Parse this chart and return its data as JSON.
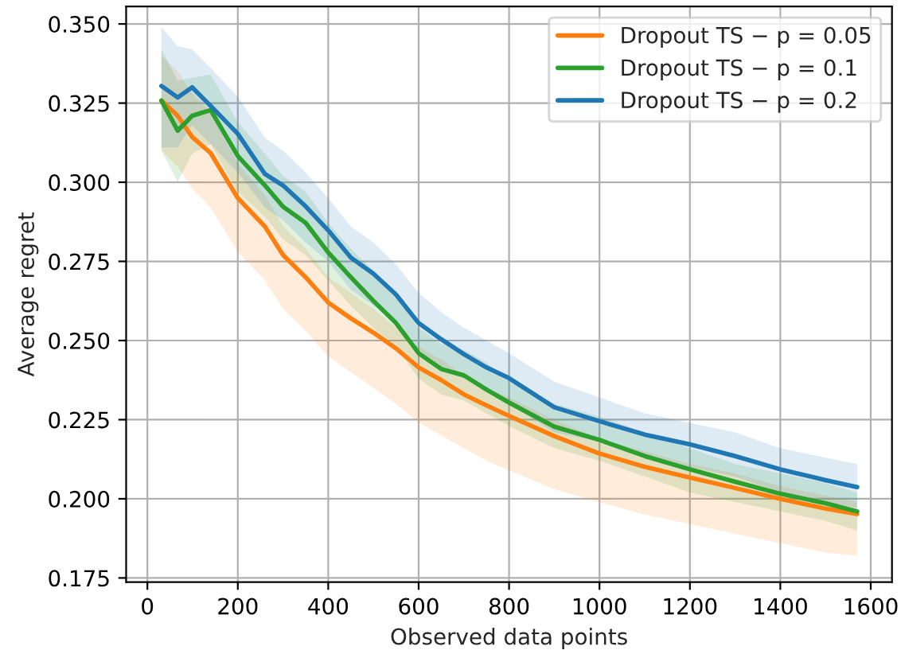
{
  "chart_data": {
    "type": "line",
    "xlabel": "Observed data points",
    "ylabel": "Average regret",
    "x": [
      31,
      67,
      99,
      140,
      200,
      260,
      300,
      350,
      400,
      450,
      500,
      550,
      600,
      650,
      700,
      750,
      800,
      900,
      1000,
      1100,
      1200,
      1300,
      1400,
      1500,
      1570
    ],
    "series": [
      {
        "name": "Dropout TS − p = 0.05",
        "color": "#ff7f0e",
        "values": [
          0.3258,
          0.321,
          0.3143,
          0.3092,
          0.295,
          0.286,
          0.277,
          0.27,
          0.262,
          0.257,
          0.2525,
          0.2475,
          0.2415,
          0.2375,
          0.233,
          0.2295,
          0.2262,
          0.2198,
          0.2143,
          0.2101,
          0.2067,
          0.2034,
          0.2,
          0.1969,
          0.1952
        ],
        "upper": [
          0.34,
          0.335,
          0.328,
          0.322,
          0.306,
          0.296,
          0.286,
          0.279,
          0.27,
          0.265,
          0.26,
          0.254,
          0.248,
          0.244,
          0.239,
          0.235,
          0.232,
          0.225,
          0.219,
          0.215,
          0.211,
          0.208,
          0.204,
          0.201,
          0.199
        ],
        "lower": [
          0.31,
          0.305,
          0.298,
          0.292,
          0.278,
          0.269,
          0.26,
          0.253,
          0.245,
          0.24,
          0.235,
          0.23,
          0.224,
          0.22,
          0.216,
          0.212,
          0.209,
          0.203,
          0.199,
          0.195,
          0.192,
          0.189,
          0.186,
          0.183,
          0.182
        ]
      },
      {
        "name": "Dropout TS − p = 0.1",
        "color": "#2ca02c",
        "values": [
          0.3258,
          0.3163,
          0.321,
          0.3228,
          0.3083,
          0.299,
          0.2923,
          0.2872,
          0.2778,
          0.27,
          0.2625,
          0.2555,
          0.246,
          0.241,
          0.239,
          0.2345,
          0.2304,
          0.2228,
          0.2186,
          0.2135,
          0.2093,
          0.2054,
          0.2016,
          0.1986,
          0.196
        ],
        "upper": [
          0.342,
          0.332,
          0.333,
          0.334,
          0.319,
          0.309,
          0.302,
          0.297,
          0.287,
          0.279,
          0.272,
          0.264,
          0.254,
          0.249,
          0.247,
          0.243,
          0.237,
          0.23,
          0.226,
          0.221,
          0.216,
          0.211,
          0.208,
          0.205,
          0.202
        ],
        "lower": [
          0.31,
          0.3,
          0.309,
          0.312,
          0.297,
          0.289,
          0.282,
          0.277,
          0.269,
          0.261,
          0.254,
          0.248,
          0.238,
          0.233,
          0.231,
          0.227,
          0.223,
          0.216,
          0.212,
          0.207,
          0.202,
          0.199,
          0.196,
          0.193,
          0.19
        ]
      },
      {
        "name": "Dropout TS − p = 0.2",
        "color": "#1f77b4",
        "values": [
          0.3304,
          0.3268,
          0.33,
          0.3241,
          0.3153,
          0.3026,
          0.299,
          0.2924,
          0.2848,
          0.2762,
          0.2711,
          0.2645,
          0.2555,
          0.2504,
          0.2457,
          0.2415,
          0.2381,
          0.2289,
          0.2245,
          0.2203,
          0.2172,
          0.2135,
          0.2093,
          0.2059,
          0.2037
        ],
        "upper": [
          0.349,
          0.343,
          0.342,
          0.336,
          0.327,
          0.314,
          0.31,
          0.303,
          0.295,
          0.286,
          0.281,
          0.274,
          0.265,
          0.259,
          0.254,
          0.25,
          0.246,
          0.237,
          0.232,
          0.227,
          0.224,
          0.221,
          0.216,
          0.213,
          0.211
        ],
        "lower": [
          0.311,
          0.311,
          0.318,
          0.312,
          0.303,
          0.292,
          0.288,
          0.281,
          0.275,
          0.266,
          0.261,
          0.256,
          0.247,
          0.241,
          0.238,
          0.234,
          0.23,
          0.221,
          0.218,
          0.213,
          0.21,
          0.207,
          0.202,
          0.199,
          0.197
        ]
      }
    ],
    "xlim": [
      -47,
      1647
    ],
    "ylim": [
      0.1737,
      0.3555
    ],
    "xticks": [
      0,
      200,
      400,
      600,
      800,
      1000,
      1200,
      1400,
      1600
    ],
    "yticks": [
      {
        "value": 0.175,
        "label": "0.175"
      },
      {
        "value": 0.2,
        "label": "0.200"
      },
      {
        "value": 0.225,
        "label": "0.225"
      },
      {
        "value": 0.25,
        "label": "0.250"
      },
      {
        "value": 0.275,
        "label": "0.275"
      },
      {
        "value": 0.3,
        "label": "0.300"
      },
      {
        "value": 0.325,
        "label": "0.325"
      },
      {
        "value": 0.35,
        "label": "0.350"
      }
    ],
    "grid": true,
    "legend": "top right",
    "line_style": "solid"
  }
}
